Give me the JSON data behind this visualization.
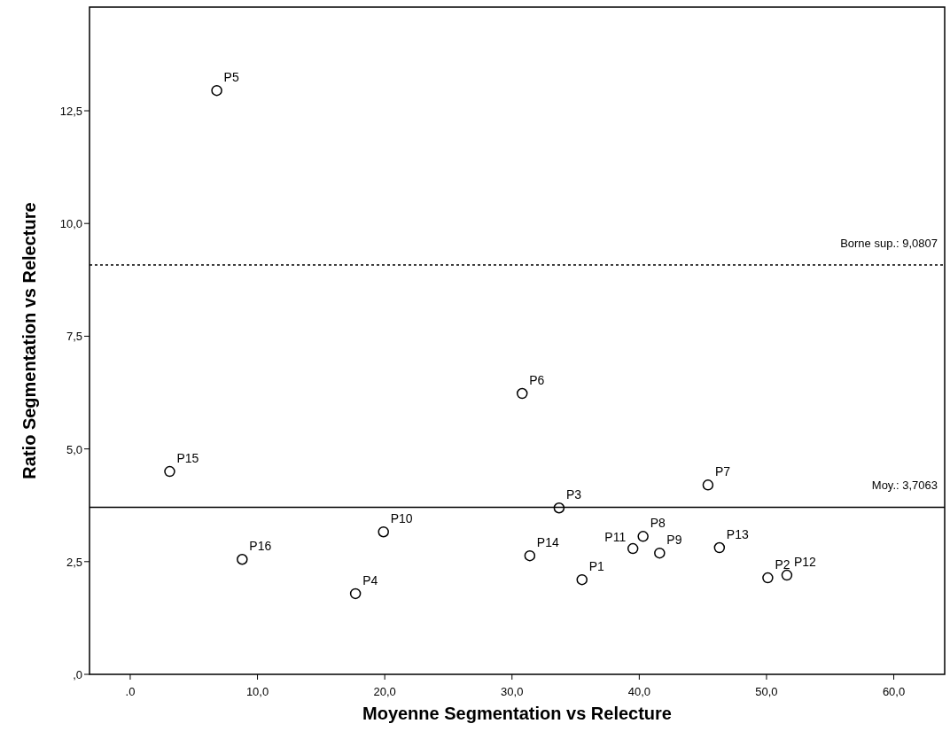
{
  "chart_data": {
    "type": "scatter",
    "xlabel": "Moyenne Segmentation vs Relecture",
    "ylabel": "Ratio Segmentation vs Relecture",
    "x": [
      35.5,
      50.1,
      33.7,
      17.7,
      6.8,
      30.8,
      45.4,
      40.3,
      41.6,
      19.9,
      39.5,
      51.6,
      46.3,
      31.4,
      3.1,
      8.8
    ],
    "series": [
      {
        "color": "#000000",
        "values": [
          2.1,
          2.14,
          3.69,
          1.79,
          12.95,
          6.23,
          4.2,
          3.06,
          2.69,
          3.16,
          2.79,
          2.2,
          2.81,
          2.63,
          4.5,
          2.55
        ]
      }
    ],
    "marker": "circle",
    "grid": false,
    "xlim": [
      -3.2,
      64
    ],
    "xticks": [
      {
        "value": 0,
        "label": ".0"
      },
      {
        "value": 10,
        "label": "10,0"
      },
      {
        "value": 20,
        "label": "20,0"
      },
      {
        "value": 30,
        "label": "30,0"
      },
      {
        "value": 40,
        "label": "40,0"
      },
      {
        "value": 50,
        "label": "50,0"
      },
      {
        "value": 60,
        "label": "60,0"
      }
    ],
    "ylim": [
      0,
      14.8
    ],
    "yticks": [
      {
        "value": 0,
        "label": ",0"
      },
      {
        "value": 2.5,
        "label": "2,5"
      },
      {
        "value": 5,
        "label": "5,0"
      },
      {
        "value": 7.5,
        "label": "7,5"
      },
      {
        "value": 10,
        "label": "10,0"
      },
      {
        "value": 12.5,
        "label": "12,5"
      }
    ],
    "ref_lines": [
      {
        "axis": "y",
        "value": 9.0807,
        "label": "Borne sup.: 9,0807",
        "line_style": "dotted"
      },
      {
        "axis": "y",
        "value": 3.7063,
        "label": "Moy.: 3,7063",
        "line_style": "solid"
      }
    ],
    "annotations": [
      {
        "text": "P1",
        "x": 35.5,
        "y": 2.1
      },
      {
        "text": "P2",
        "x": 50.1,
        "y": 2.14
      },
      {
        "text": "P3",
        "x": 33.7,
        "y": 3.69
      },
      {
        "text": "P4",
        "x": 17.7,
        "y": 1.79
      },
      {
        "text": "P5",
        "x": 6.8,
        "y": 12.95
      },
      {
        "text": "P6",
        "x": 30.8,
        "y": 6.23
      },
      {
        "text": "P7",
        "x": 45.4,
        "y": 4.2
      },
      {
        "text": "P8",
        "x": 40.3,
        "y": 3.06
      },
      {
        "text": "P9",
        "x": 41.6,
        "y": 2.69
      },
      {
        "text": "P10",
        "x": 19.9,
        "y": 3.16
      },
      {
        "text": "P11",
        "x": 39.5,
        "y": 2.79
      },
      {
        "text": "P12",
        "x": 51.6,
        "y": 2.2
      },
      {
        "text": "P13",
        "x": 46.3,
        "y": 2.81
      },
      {
        "text": "P14",
        "x": 31.4,
        "y": 2.63
      },
      {
        "text": "P15",
        "x": 3.1,
        "y": 4.5
      },
      {
        "text": "P16",
        "x": 8.8,
        "y": 2.55
      }
    ]
  }
}
